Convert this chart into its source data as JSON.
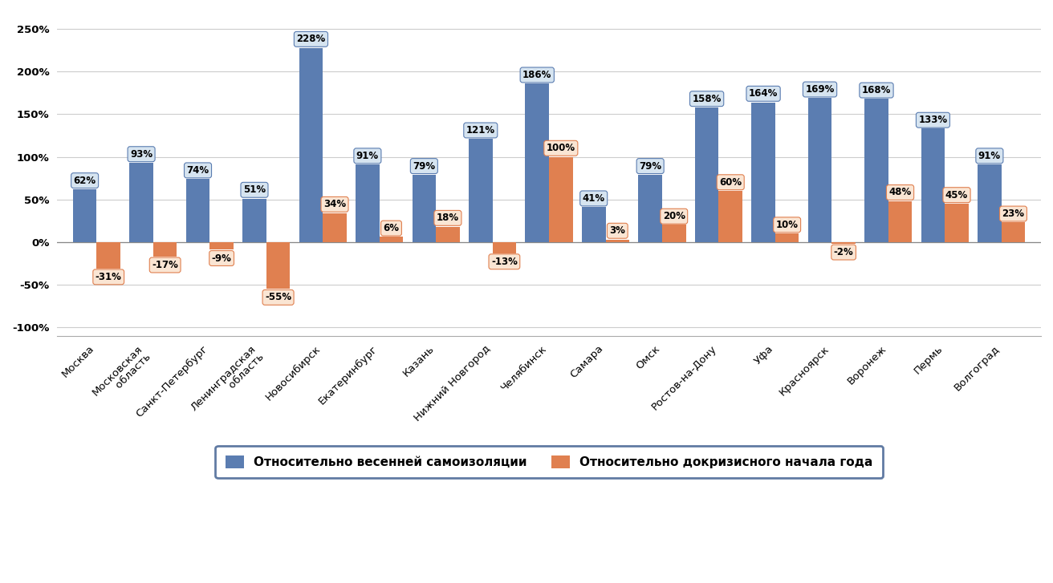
{
  "categories": [
    "Москва",
    "Московская\n область",
    "Санкт-Петербург",
    "Ленинградская\n область",
    "Новосибирск",
    "Екатеринбург",
    "Казань",
    "Нижний Новгород",
    "Челябинск",
    "Самара",
    "Омск",
    "Ростов-на-Дону",
    "Уфа",
    "Красноярск",
    "Воронеж",
    "Пермь",
    "Волгоград"
  ],
  "series1_values": [
    62,
    93,
    74,
    51,
    228,
    91,
    79,
    121,
    186,
    41,
    79,
    158,
    164,
    169,
    168,
    133,
    91
  ],
  "series2_values": [
    -31,
    -17,
    -9,
    -55,
    34,
    6,
    18,
    -13,
    100,
    3,
    20,
    60,
    10,
    -2,
    48,
    45,
    23
  ],
  "series1_color": "#5B7DB1",
  "series2_color": "#E08050",
  "series1_label": "Относительно весенней самоизоляции",
  "series2_label": "Относительно докризисного начала года",
  "series1_box_color": "#D6E4F0",
  "series2_box_color": "#FAE5D3",
  "ylim": [
    -110,
    270
  ],
  "yticks": [
    -100,
    -50,
    0,
    50,
    100,
    150,
    200,
    250
  ],
  "ytick_labels": [
    "-100%",
    "-50%",
    "0%",
    "50%",
    "100%",
    "150%",
    "200%",
    "250%"
  ],
  "bar_width": 0.42,
  "bg_color": "#FFFFFF",
  "grid_color": "#CCCCCC",
  "annotation_fontsize": 8.5,
  "axis_fontsize": 9.5,
  "legend_fontsize": 11,
  "legend_border_color": "#3A5A8C"
}
